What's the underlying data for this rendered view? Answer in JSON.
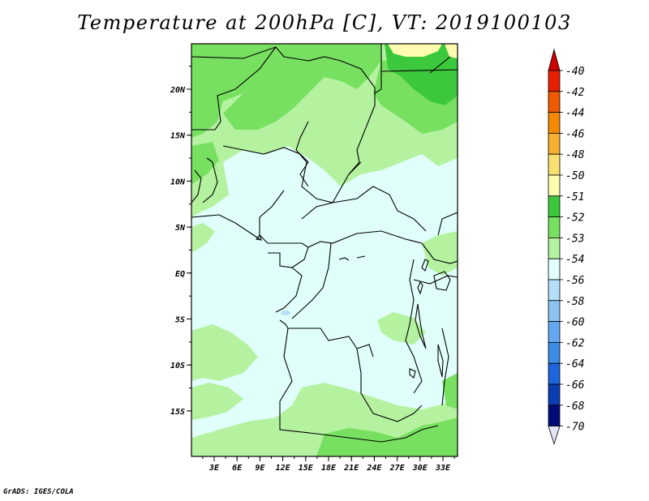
{
  "title": "Temperature at 200hPa [C], VT: 2019100103",
  "credit": "GrADS: IGES/COLA",
  "map": {
    "lat_labels": [
      "20N",
      "15N",
      "10N",
      "5N",
      "EQ",
      "5S",
      "10S",
      "15S"
    ],
    "lon_labels": [
      "3E",
      "6E",
      "9E",
      "12E",
      "15E",
      "18E",
      "21E",
      "24E",
      "27E",
      "30E",
      "33E"
    ]
  },
  "colorbar": {
    "levels": [
      {
        "label": "-40",
        "color": "#d00000"
      },
      {
        "label": "-42",
        "color": "#e82000"
      },
      {
        "label": "-44",
        "color": "#f05a00"
      },
      {
        "label": "-46",
        "color": "#f58a00"
      },
      {
        "label": "-48",
        "color": "#f8b030"
      },
      {
        "label": "-50",
        "color": "#fae070"
      },
      {
        "label": "-51",
        "color": "#fffcb0"
      },
      {
        "label": "-52",
        "color": "#3cc83c"
      },
      {
        "label": "-53",
        "color": "#78e060"
      },
      {
        "label": "-54",
        "color": "#b4f2a0"
      },
      {
        "label": "-56",
        "color": "#e0fffa"
      },
      {
        "label": "-58",
        "color": "#b4defa"
      },
      {
        "label": "-60",
        "color": "#8cc4f4"
      },
      {
        "label": "-62",
        "color": "#64a6f0"
      },
      {
        "label": "-64",
        "color": "#3c8ce6"
      },
      {
        "label": "-66",
        "color": "#1e64dc"
      },
      {
        "label": "-68",
        "color": "#0a3cb4"
      },
      {
        "label": "-70",
        "color": "#000a78"
      }
    ],
    "under_color": "#e4e4f8"
  }
}
